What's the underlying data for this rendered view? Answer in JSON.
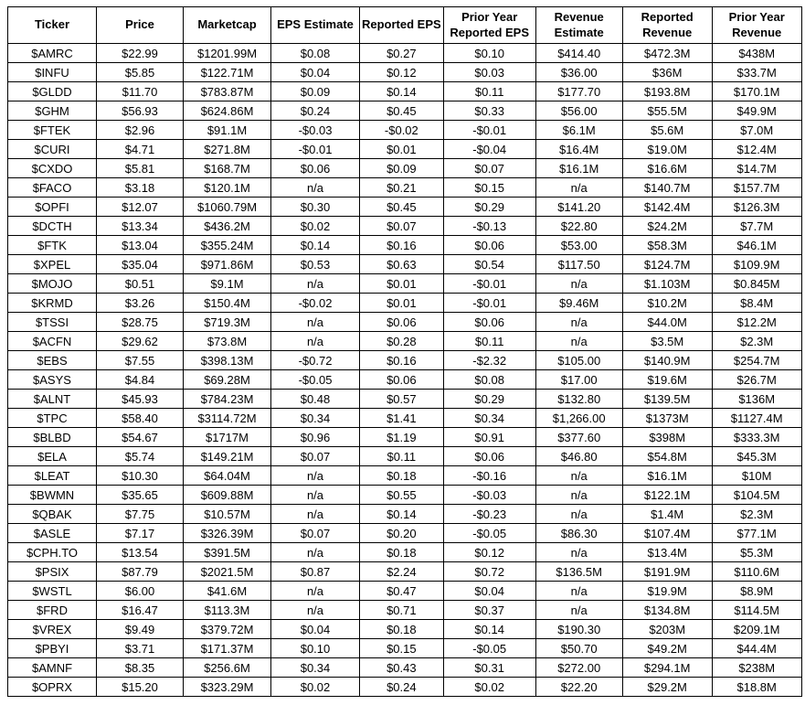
{
  "colors": {
    "background": "#ffffff",
    "border": "#000000",
    "text": "#000000"
  },
  "chart_data": {
    "type": "table",
    "title": "",
    "columns": [
      "Ticker",
      "Price",
      "Marketcap",
      "EPS Estimate",
      "Reported EPS",
      "Prior Year\nReported EPS",
      "Revenue\nEstimate",
      "Reported\nRevenue",
      "Prior Year\nRevenue"
    ],
    "rows": [
      [
        "$AMRC",
        "$22.99",
        "$1201.99M",
        "$0.08",
        "$0.27",
        "$0.10",
        "$414.40",
        "$472.3M",
        "$438M"
      ],
      [
        "$INFU",
        "$5.85",
        "$122.71M",
        "$0.04",
        "$0.12",
        "$0.03",
        "$36.00",
        "$36M",
        "$33.7M"
      ],
      [
        "$GLDD",
        "$11.70",
        "$783.87M",
        "$0.09",
        "$0.14",
        "$0.11",
        "$177.70",
        "$193.8M",
        "$170.1M"
      ],
      [
        "$GHM",
        "$56.93",
        "$624.86M",
        "$0.24",
        "$0.45",
        "$0.33",
        "$56.00",
        "$55.5M",
        "$49.9M"
      ],
      [
        "$FTEK",
        "$2.96",
        "$91.1M",
        "-$0.03",
        "-$0.02",
        "-$0.01",
        "$6.1M",
        "$5.6M",
        "$7.0M"
      ],
      [
        "$CURI",
        "$4.71",
        "$271.8M",
        "-$0.01",
        "$0.01",
        "-$0.04",
        "$16.4M",
        "$19.0M",
        "$12.4M"
      ],
      [
        "$CXDO",
        "$5.81",
        "$168.7M",
        "$0.06",
        "$0.09",
        "$0.07",
        "$16.1M",
        "$16.6M",
        "$14.7M"
      ],
      [
        "$FACO",
        "$3.18",
        "$120.1M",
        "n/a",
        "$0.21",
        "$0.15",
        "n/a",
        "$140.7M",
        "$157.7M"
      ],
      [
        "$OPFI",
        "$12.07",
        "$1060.79M",
        "$0.30",
        "$0.45",
        "$0.29",
        "$141.20",
        "$142.4M",
        "$126.3M"
      ],
      [
        "$DCTH",
        "$13.34",
        "$436.2M",
        "$0.02",
        "$0.07",
        "-$0.13",
        "$22.80",
        "$24.2M",
        "$7.7M"
      ],
      [
        "$FTK",
        "$13.04",
        "$355.24M",
        "$0.14",
        "$0.16",
        "$0.06",
        "$53.00",
        "$58.3M",
        "$46.1M"
      ],
      [
        "$XPEL",
        "$35.04",
        "$971.86M",
        "$0.53",
        "$0.63",
        "$0.54",
        "$117.50",
        "$124.7M",
        "$109.9M"
      ],
      [
        "$MOJO",
        "$0.51",
        "$9.1M",
        "n/a",
        "$0.01",
        "-$0.01",
        "n/a",
        "$1.103M",
        "$0.845M"
      ],
      [
        "$KRMD",
        "$3.26",
        "$150.4M",
        "-$0.02",
        "$0.01",
        "-$0.01",
        "$9.46M",
        "$10.2M",
        "$8.4M"
      ],
      [
        "$TSSI",
        "$28.75",
        "$719.3M",
        "n/a",
        "$0.06",
        "$0.06",
        "n/a",
        "$44.0M",
        "$12.2M"
      ],
      [
        "$ACFN",
        "$29.62",
        "$73.8M",
        "n/a",
        "$0.28",
        "$0.11",
        "n/a",
        "$3.5M",
        "$2.3M"
      ],
      [
        "$EBS",
        "$7.55",
        "$398.13M",
        "-$0.72",
        "$0.16",
        "-$2.32",
        "$105.00",
        "$140.9M",
        "$254.7M"
      ],
      [
        "$ASYS",
        "$4.84",
        "$69.28M",
        "-$0.05",
        "$0.06",
        "$0.08",
        "$17.00",
        "$19.6M",
        "$26.7M"
      ],
      [
        "$ALNT",
        "$45.93",
        "$784.23M",
        "$0.48",
        "$0.57",
        "$0.29",
        "$132.80",
        "$139.5M",
        "$136M"
      ],
      [
        "$TPC",
        "$58.40",
        "$3114.72M",
        "$0.34",
        "$1.41",
        "$0.34",
        "$1,266.00",
        "$1373M",
        "$1127.4M"
      ],
      [
        "$BLBD",
        "$54.67",
        "$1717M",
        "$0.96",
        "$1.19",
        "$0.91",
        "$377.60",
        "$398M",
        "$333.3M"
      ],
      [
        "$ELA",
        "$5.74",
        "$149.21M",
        "$0.07",
        "$0.11",
        "$0.06",
        "$46.80",
        "$54.8M",
        "$45.3M"
      ],
      [
        "$LEAT",
        "$10.30",
        "$64.04M",
        "n/a",
        "$0.18",
        "-$0.16",
        "n/a",
        "$16.1M",
        "$10M"
      ],
      [
        "$BWMN",
        "$35.65",
        "$609.88M",
        "n/a",
        "$0.55",
        "-$0.03",
        "n/a",
        "$122.1M",
        "$104.5M"
      ],
      [
        "$QBAK",
        "$7.75",
        "$10.57M",
        "n/a",
        "$0.14",
        "-$0.23",
        "n/a",
        "$1.4M",
        "$2.3M"
      ],
      [
        "$ASLE",
        "$7.17",
        "$326.39M",
        "$0.07",
        "$0.20",
        "-$0.05",
        "$86.30",
        "$107.4M",
        "$77.1M"
      ],
      [
        "$CPH.TO",
        "$13.54",
        "$391.5M",
        "n/a",
        "$0.18",
        "$0.12",
        "n/a",
        "$13.4M",
        "$5.3M"
      ],
      [
        "$PSIX",
        "$87.79",
        "$2021.5M",
        "$0.87",
        "$2.24",
        "$0.72",
        "$136.5M",
        "$191.9M",
        "$110.6M"
      ],
      [
        "$WSTL",
        "$6.00",
        "$41.6M",
        "n/a",
        "$0.47",
        "$0.04",
        "n/a",
        "$19.9M",
        "$8.9M"
      ],
      [
        "$FRD",
        "$16.47",
        "$113.3M",
        "n/a",
        "$0.71",
        "$0.37",
        "n/a",
        "$134.8M",
        "$114.5M"
      ],
      [
        "$VREX",
        "$9.49",
        "$379.72M",
        "$0.04",
        "$0.18",
        "$0.14",
        "$190.30",
        "$203M",
        "$209.1M"
      ],
      [
        "$PBYI",
        "$3.71",
        "$171.37M",
        "$0.10",
        "$0.15",
        "-$0.05",
        "$50.70",
        "$49.2M",
        "$44.4M"
      ],
      [
        "$AMNF",
        "$8.35",
        "$256.6M",
        "$0.34",
        "$0.43",
        "$0.31",
        "$272.00",
        "$294.1M",
        "$238M"
      ],
      [
        "$OPRX",
        "$15.20",
        "$323.29M",
        "$0.02",
        "$0.24",
        "$0.02",
        "$22.20",
        "$29.2M",
        "$18.8M"
      ]
    ]
  }
}
